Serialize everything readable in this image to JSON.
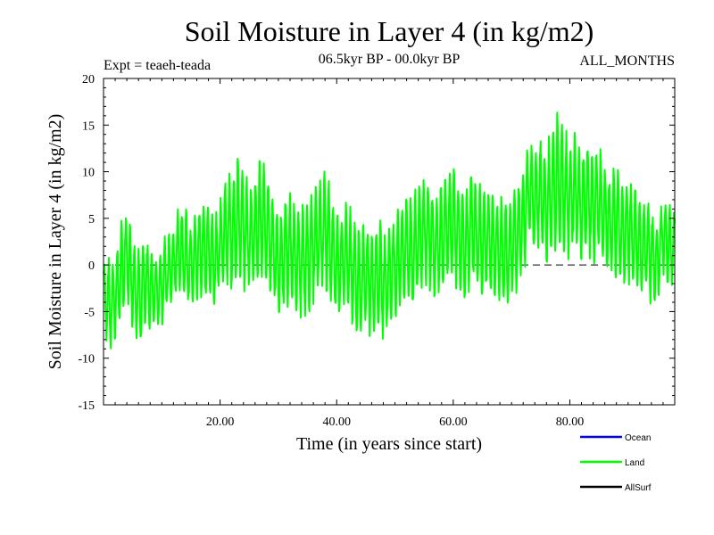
{
  "chart_data": {
    "type": "line",
    "title": "Soil Moisture in Layer 4 (in kg/m2)",
    "subtitle_left": "Expt = teaeh-teada",
    "subtitle_center": "06.5kyr BP - 00.0kyr BP",
    "subtitle_right": "ALL_MONTHS",
    "xlabel": "Time (in years since start)",
    "ylabel": "Soil Moisture in Layer 4 (in kg/m2)",
    "xlim": [
      0,
      98
    ],
    "ylim": [
      -15,
      20
    ],
    "x_ticks": [
      20,
      40,
      60,
      80
    ],
    "x_tick_labels": [
      "20.00",
      "40.00",
      "60.00",
      "80.00"
    ],
    "y_ticks": [
      -15,
      -10,
      -5,
      0,
      5,
      10,
      15,
      20
    ],
    "y_tick_labels": [
      "-15",
      "-10",
      "-5",
      "0",
      "5",
      "10",
      "15",
      "20"
    ],
    "zero_line": true,
    "legend": [
      {
        "name": "Ocean",
        "color": "#0000ff"
      },
      {
        "name": "Land",
        "color": "#00ff00"
      },
      {
        "name": "AllSurf",
        "color": "#000000"
      }
    ],
    "series": [
      {
        "name": "Land",
        "color": "#00ff00",
        "samples_per_year": 12,
        "anchor_x": [
          0,
          1.5,
          3,
          4,
          5,
          6.2,
          7,
          8,
          9,
          10,
          11,
          12,
          13,
          14,
          15,
          16,
          17,
          18,
          19,
          20,
          21,
          22,
          22.8,
          24,
          25,
          26,
          26.8,
          28,
          29,
          30,
          31,
          32,
          33,
          34,
          35,
          36,
          37,
          38,
          39,
          40,
          41,
          42,
          43,
          44,
          45,
          46,
          47,
          48,
          49,
          50,
          51,
          52,
          53,
          54,
          55,
          56,
          57,
          58,
          59,
          60,
          61,
          62,
          63,
          64,
          65,
          66,
          67,
          68,
          69,
          70,
          71,
          72,
          73,
          74,
          75,
          76,
          77,
          77.8,
          79,
          80,
          81,
          82,
          83,
          84,
          85,
          86,
          87,
          88,
          89,
          90,
          91,
          92,
          93,
          94,
          95,
          96,
          97,
          98
        ],
        "anchor_mean": [
          -3,
          -4.5,
          -1,
          1,
          -1.5,
          -4,
          -2,
          -2.5,
          -3,
          -2,
          -1,
          0,
          2,
          1,
          0,
          1,
          2,
          1.5,
          0.5,
          2,
          4,
          3.5,
          5,
          4,
          3,
          4,
          5,
          4,
          2,
          0,
          1,
          2,
          0.5,
          0,
          1,
          2,
          3,
          4,
          2,
          0,
          0.5,
          1,
          -1,
          -2,
          -1,
          -2,
          -1,
          -2,
          -1,
          0,
          1,
          2,
          1,
          3,
          4,
          3,
          2,
          3,
          4,
          4.5,
          3,
          2,
          4,
          3,
          2,
          3,
          2,
          2,
          1,
          2,
          3,
          5,
          8,
          7,
          8,
          6,
          8,
          9,
          8,
          7,
          8,
          6,
          7,
          6,
          7,
          5,
          4,
          5,
          3,
          4,
          3,
          2,
          2,
          1,
          0,
          3,
          2,
          2
        ],
        "anchor_amp": [
          4,
          5,
          5,
          5,
          5,
          6,
          5,
          5,
          4,
          4,
          4,
          4,
          5,
          5,
          5,
          5,
          5,
          5,
          5,
          5,
          6,
          6,
          8,
          6,
          6,
          6,
          7,
          6,
          6,
          6,
          6,
          6,
          6,
          6,
          6,
          6,
          6,
          7,
          6,
          6,
          6,
          6,
          6,
          6,
          6,
          6,
          6,
          6,
          6,
          6,
          6,
          6,
          6,
          6,
          6,
          6,
          6,
          6,
          6,
          7,
          6,
          6,
          6,
          6,
          6,
          6,
          6,
          6,
          6,
          6,
          6,
          6,
          6,
          6,
          6,
          6,
          7,
          8,
          7,
          6,
          6,
          6,
          6,
          6,
          6,
          6,
          6,
          6,
          6,
          6,
          6,
          5,
          5,
          5,
          5,
          4,
          4,
          4
        ]
      }
    ]
  }
}
